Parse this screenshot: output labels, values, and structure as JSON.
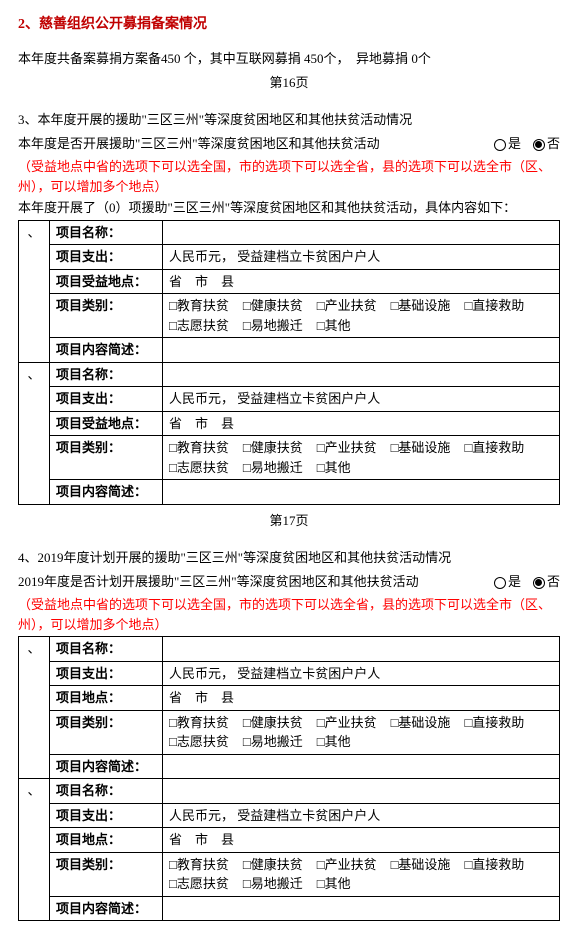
{
  "section2": {
    "title": "2、慈善组织公开募捐备案情况",
    "summary_prefix": "本年度共备案募捐方案备",
    "total": "450",
    "unit": "个，其中互联网募捐",
    "internet": "450个，",
    "offsite_label": "异地募捐",
    "offsite": "0个",
    "page": "第16页"
  },
  "section3": {
    "heading": "3、本年度开展的援助\"三区三州\"等深度贫困地区和其他扶贫活动情况",
    "question": "本年度是否开展援助\"三区三州\"等深度贫困地区和其他扶贫活动",
    "opt_yes": "是",
    "opt_no": "否",
    "note": "（受益地点中省的选项下可以选全国，市的选项下可以选全省，县的选项下可以选全市（区、州），可以增加多个地点）",
    "intro": "本年度开展了（0）项援助\"三区三州\"等深度贫困地区和其他扶贫活动，具体内容如下：",
    "labels": {
      "name": "项目名称：",
      "spend": "项目支出：",
      "spend_val": "人民币元，  受益建档立卡贫困户户人",
      "benefit_loc": "项目受益地点：",
      "loc_val": "省　市　县",
      "cat": "项目类别：",
      "desc": "项目内容简述："
    },
    "cats_row1": [
      "□教育扶贫",
      "□健康扶贫",
      "□产业扶贫",
      "□基础设施",
      "□直接救助"
    ],
    "cats_row2": [
      "□志愿扶贫",
      "□易地搬迁",
      "□其他"
    ],
    "page": "第17页"
  },
  "section4": {
    "heading": "4、2019年度计划开展的援助\"三区三州\"等深度贫困地区和其他扶贫活动情况",
    "question": "2019年度是否计划开展援助\"三区三州\"等深度贫困地区和其他扶贫活动",
    "opt_yes": "是",
    "opt_no": "否",
    "note": "（受益地点中省的选项下可以选全国，市的选项下可以选全省，县的选项下可以选全市（区、州），可以增加多个地点）",
    "labels": {
      "name": "项目名称：",
      "spend": "项目支出：",
      "spend_val": "人民币元，  受益建档立卡贫困户户人",
      "loc": "项目地点：",
      "loc_val": "省　市　县",
      "cat": "项目类别：",
      "desc": "项目内容简述："
    },
    "cats_row1": [
      "□教育扶贫",
      "□健康扶贫",
      "□产业扶贫",
      "□基础设施",
      "□直接救助"
    ],
    "cats_row2": [
      "□志愿扶贫",
      "□易地搬迁",
      "□其他"
    ]
  }
}
